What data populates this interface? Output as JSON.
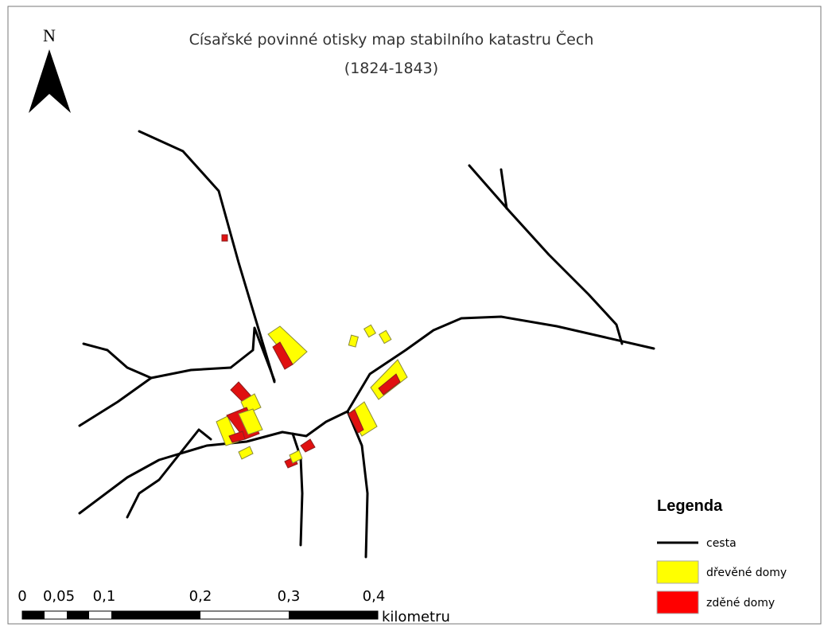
{
  "north": "N",
  "title": [
    "Císařské povinné otisky map stabilního katastru Čech",
    "(1824-1843)"
  ],
  "legend": {
    "title": "Legenda",
    "items": [
      "cesta",
      "dřevěné domy",
      "zděné domy"
    ]
  },
  "scale": {
    "labels": [
      "0",
      "0,05",
      "0,1",
      "0,2",
      "0,3",
      "0,4"
    ],
    "unit": "kilometru"
  }
}
